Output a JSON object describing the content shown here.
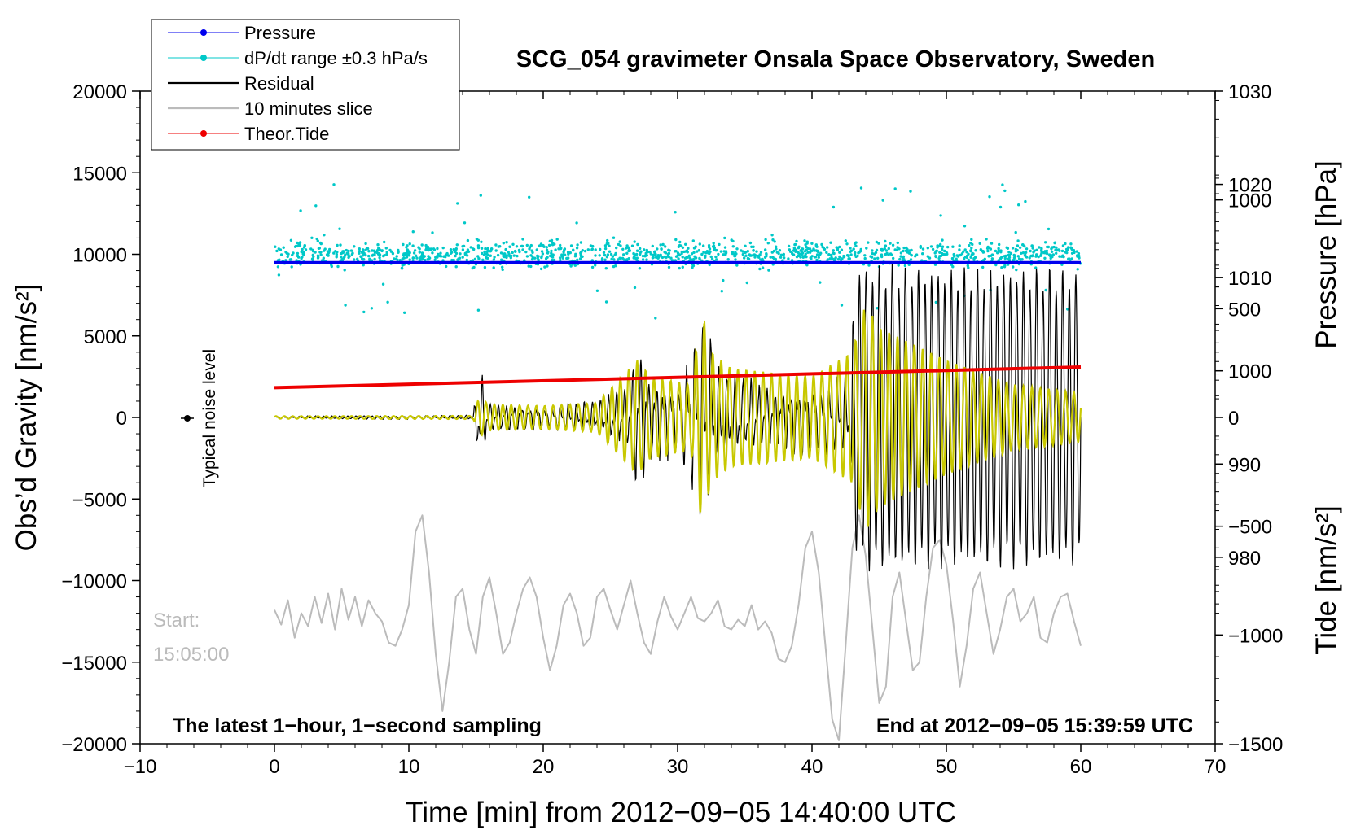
{
  "chart_data": {
    "type": "line",
    "title": "SCG_054 gravimeter Onsala Space Observatory, Sweden",
    "xlabel": "Time [min] from 2012−09−05 14:40:00 UTC",
    "ylabel_left": "Obs’d Gravity [nm/s²]",
    "ylabel_right_pressure": "Pressure [hPa]",
    "ylabel_right_tide": "Tide [nm/s²]",
    "xlim": [
      -10,
      70
    ],
    "ylim_left": [
      -20000,
      20000
    ],
    "x_ticks": [
      "−10",
      "0",
      "10",
      "20",
      "30",
      "40",
      "50",
      "60",
      "70"
    ],
    "y_ticks_left": [
      "20000",
      "15000",
      "10000",
      "5000",
      "0",
      "−5000",
      "−10000",
      "−15000",
      "−20000"
    ],
    "y_ticks_pressure": [
      "1030",
      "1020",
      "1010",
      "1000",
      "990",
      "980"
    ],
    "pressure_range": [
      960,
      1030
    ],
    "y_ticks_tide": [
      "1000",
      "500",
      "0",
      "−500",
      "−1000",
      "−1500"
    ],
    "tide_range": [
      -1500,
      1500
    ],
    "legend": [
      {
        "label": "Pressure",
        "color": "#0000ee",
        "marker": true
      },
      {
        "label": "dP/dt range ±0.3 hPa/s",
        "color": "#00c8c8",
        "marker": true
      },
      {
        "label": "Residual",
        "color": "#000000",
        "marker": false
      },
      {
        "label": "10 minutes slice",
        "color": "#bbbbbb",
        "marker": false
      },
      {
        "label": "Theor.Tide",
        "color": "#ee0000",
        "marker": true
      }
    ],
    "legend_position": "top-left",
    "annotations": {
      "bottom_left": "The latest 1−hour, 1−second sampling",
      "bottom_right": "End at 2012−09−05 15:39:59 UTC",
      "noise_label": "Typical noise level",
      "slice_start_label": "Start:",
      "slice_start_time": "15:05:00"
    },
    "series": [
      {
        "name": "Pressure",
        "color": "#0000ee",
        "x": [
          0,
          60
        ],
        "y_hpa": [
          1011.6,
          1011.6
        ]
      },
      {
        "name": "Theor.Tide",
        "color": "#ee0000",
        "x": [
          0,
          60
        ],
        "y_tide": [
          137,
          232
        ]
      },
      {
        "name": "dP/dt range",
        "color": "#00c8c8",
        "center": 10000,
        "spread": 700
      },
      {
        "name": "Residual",
        "color": "#000000",
        "envelope_x": [
          0,
          14.8,
          15.2,
          16,
          20,
          24,
          26.5,
          27,
          28,
          30,
          31.6,
          32,
          33,
          37,
          40,
          42.5,
          43.5,
          45,
          50,
          55,
          60
        ],
        "envelope_y": [
          100,
          150,
          4000,
          1000,
          800,
          1200,
          2500,
          6000,
          3000,
          2500,
          7000,
          8000,
          3500,
          2000,
          2500,
          3000,
          9500,
          9500,
          9300,
          9300,
          9200
        ]
      },
      {
        "name": "Residual (filtered)",
        "color": "#c8c800",
        "envelope_x": [
          0,
          14.8,
          15.2,
          16,
          20,
          24,
          27,
          28,
          31,
          31.8,
          32.5,
          34,
          40,
          43,
          44,
          45,
          50,
          55,
          60
        ],
        "envelope_y": [
          80,
          100,
          1200,
          800,
          700,
          900,
          3500,
          2500,
          2000,
          6500,
          4000,
          3000,
          2500,
          4000,
          7000,
          5500,
          3500,
          2000,
          1500
        ]
      },
      {
        "name": "10 minutes slice",
        "color": "#bbbbbb",
        "x": [
          0,
          0.5,
          1,
          1.5,
          2,
          2.5,
          3,
          3.5,
          4,
          4.5,
          5,
          5.5,
          6,
          6.5,
          7,
          7.5,
          8,
          8.5,
          9,
          9.5,
          10,
          10.5,
          11,
          11.5,
          12,
          12.5,
          13,
          13.5,
          14,
          14.5,
          15,
          15.5,
          16,
          16.5,
          17,
          17.5,
          18,
          18.5,
          19,
          19.5,
          20,
          20.5,
          21,
          21.5,
          22,
          22.5,
          23,
          23.5,
          24,
          24.5,
          25,
          25.5,
          26,
          26.5,
          27,
          27.5,
          28,
          28.5,
          29,
          29.5,
          30,
          30.5,
          31,
          31.5,
          32,
          32.5,
          33,
          33.5,
          34,
          34.5,
          35,
          35.5,
          36,
          36.5,
          37,
          37.5,
          38,
          38.5,
          39,
          39.5,
          40,
          40.5,
          41,
          41.5,
          42,
          42.5,
          43,
          43.5,
          44,
          44.5,
          45,
          45.5,
          46,
          46.5,
          47,
          47.5,
          48,
          48.5,
          49,
          49.5,
          50,
          50.5,
          51,
          51.5,
          52,
          52.5,
          53,
          53.5,
          54,
          54.5,
          55,
          55.5,
          56,
          56.5,
          57,
          57.5,
          58,
          58.5,
          59,
          59.5,
          60
        ],
        "y": [
          -11800,
          -12700,
          -11200,
          -13500,
          -12000,
          -12800,
          -11000,
          -12600,
          -10800,
          -13000,
          -10500,
          -12400,
          -11000,
          -12800,
          -11200,
          -12000,
          -12500,
          -13800,
          -14000,
          -13000,
          -11500,
          -7000,
          -6000,
          -9500,
          -14500,
          -18000,
          -15000,
          -11000,
          -10500,
          -13000,
          -14500,
          -11000,
          -9800,
          -12000,
          -14500,
          -13800,
          -12000,
          -10500,
          -9800,
          -11000,
          -13500,
          -15500,
          -14000,
          -11500,
          -10800,
          -12000,
          -14000,
          -13500,
          -11000,
          -10500,
          -11800,
          -13000,
          -11500,
          -10000,
          -12000,
          -13800,
          -14500,
          -12500,
          -11000,
          -12200,
          -13000,
          -12000,
          -11000,
          -12300,
          -12500,
          -12000,
          -11200,
          -12800,
          -13000,
          -12400,
          -12800,
          -11500,
          -13000,
          -12500,
          -13200,
          -14800,
          -15000,
          -14000,
          -11500,
          -8000,
          -7000,
          -9500,
          -14000,
          -18500,
          -19800,
          -14000,
          -8000,
          -6000,
          -8500,
          -13000,
          -17500,
          -16500,
          -11000,
          -9500,
          -12500,
          -15500,
          -15000,
          -11000,
          -8000,
          -7500,
          -9000,
          -12500,
          -16500,
          -14000,
          -10500,
          -9500,
          -12000,
          -14500,
          -13000,
          -11000,
          -10500,
          -12500,
          -12000,
          -11000,
          -13500,
          -13800,
          -12000,
          -11000,
          -10800,
          -12500,
          -14000
        ]
      }
    ]
  }
}
